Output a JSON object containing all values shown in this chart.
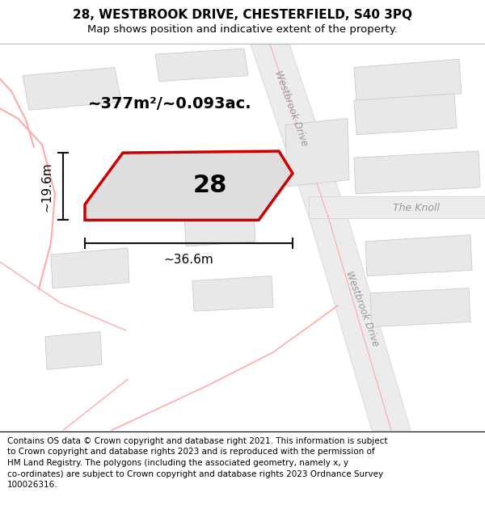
{
  "title": "28, WESTBROOK DRIVE, CHESTERFIELD, S40 3PQ",
  "subtitle": "Map shows position and indicative extent of the property.",
  "footer": "Contains OS data © Crown copyright and database right 2021. This information is subject\nto Crown copyright and database rights 2023 and is reproduced with the permission of\nHM Land Registry. The polygons (including the associated geometry, namely x, y\nco-ordinates) are subject to Crown copyright and database rights 2023 Ordnance Survey\n100026316.",
  "area_label": "~377m²/~0.093ac.",
  "width_label": "~36.6m",
  "height_label": "~19.6m",
  "number_label": "28",
  "road_fill": "#ececec",
  "road_edge": "#d5d5d5",
  "road_line": "#ffaaaa",
  "bld_color": "#e8e8e8",
  "bld_edge": "#cccccc",
  "plot_fill": "#dedede",
  "plot_edge": "#cc0000",
  "dim_color": "#111111",
  "label_color": "#999999",
  "map_bg": "#f8f8f8",
  "title_fontsize": 11,
  "subtitle_fontsize": 9.5,
  "footer_fontsize": 7.5,
  "area_fontsize": 14,
  "number_fontsize": 22,
  "dim_fontsize": 11,
  "street_fontsize": 8.5,
  "knoll_fontsize": 9,
  "street_label1": "Westbrook Drive",
  "street_label2": "Westbrook Drive",
  "knoll_label": "The Knoll"
}
